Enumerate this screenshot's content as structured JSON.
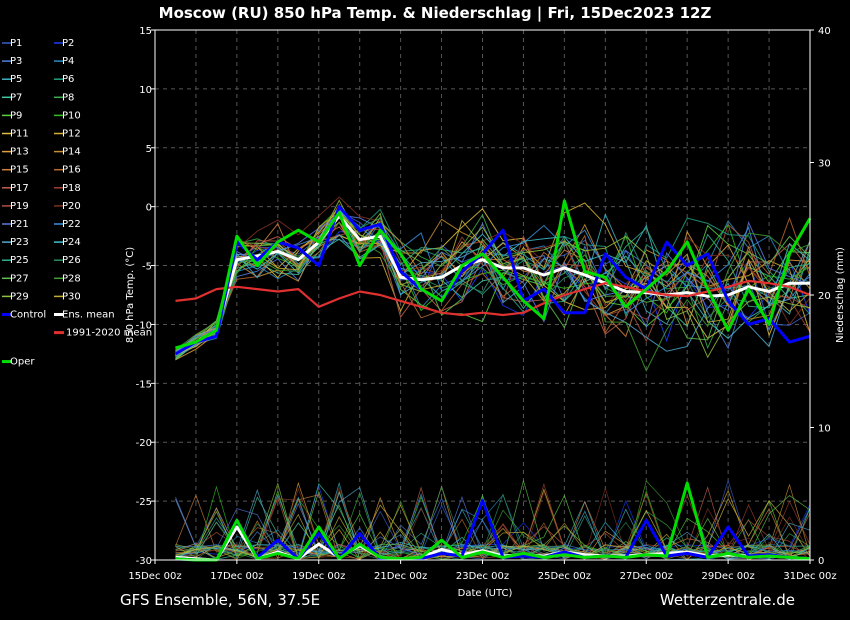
{
  "chart_data": {
    "type": "line",
    "title": "Moscow  (RU)  850 hPa Temp. & Niederschlag | Fri, 15Dec2023 12Z",
    "xlabel": "Date (UTC)",
    "ylabel_left": "850 hPa Temp. (°C)",
    "ylabel_right": "Niederschlag (mm)",
    "footer_left": "GFS Ensemble, 56N, 37.5E",
    "footer_right": "Wetterzentrale.de",
    "ylim_left": [
      -30,
      15
    ],
    "yticks_left": [
      "15",
      "10",
      "5",
      "0",
      "-5",
      "-10",
      "-15",
      "-20",
      "-25",
      "-30"
    ],
    "ylim_right": [
      0,
      40
    ],
    "yticks_right": [
      "40",
      "30",
      "20",
      "10",
      "0"
    ],
    "x_start": "15Dec 00z",
    "x_end": "31Dec 00z",
    "xticks": [
      "15Dec 00z",
      "17Dec 00z",
      "19Dec 00z",
      "21Dec 00z",
      "23Dec 00z",
      "25Dec 00z",
      "27Dec 00z",
      "29Dec 00z",
      "31Dec 00z"
    ],
    "grid": true,
    "legend_position": "left",
    "legend": [
      {
        "label": "P1",
        "color": "#3a5fcd"
      },
      {
        "label": "P2",
        "color": "#1e3cff"
      },
      {
        "label": "P3",
        "color": "#4f7fdc"
      },
      {
        "label": "P4",
        "color": "#2b8cc4"
      },
      {
        "label": "P5",
        "color": "#40b0c0"
      },
      {
        "label": "P6",
        "color": "#20a080"
      },
      {
        "label": "P7",
        "color": "#40c8a0"
      },
      {
        "label": "P8",
        "color": "#3cb050"
      },
      {
        "label": "P9",
        "color": "#5ad040"
      },
      {
        "label": "P10",
        "color": "#30c020"
      },
      {
        "label": "P11",
        "color": "#e0c040"
      },
      {
        "label": "P12",
        "color": "#d8b030"
      },
      {
        "label": "P13",
        "color": "#e0a040"
      },
      {
        "label": "P14",
        "color": "#c89030"
      },
      {
        "label": "P15",
        "color": "#d08040"
      },
      {
        "label": "P16",
        "color": "#b86a30"
      },
      {
        "label": "P17",
        "color": "#c06050"
      },
      {
        "label": "P18",
        "color": "#a04030"
      },
      {
        "label": "P19",
        "color": "#b05040"
      },
      {
        "label": "P20",
        "color": "#803020"
      },
      {
        "label": "P21",
        "color": "#5a7ae0"
      },
      {
        "label": "P22",
        "color": "#3a90e0"
      },
      {
        "label": "P23",
        "color": "#50a8d0"
      },
      {
        "label": "P24",
        "color": "#40c0d0"
      },
      {
        "label": "P25",
        "color": "#30b090"
      },
      {
        "label": "P26",
        "color": "#2a9060"
      },
      {
        "label": "P27",
        "color": "#60c050"
      },
      {
        "label": "P28",
        "color": "#40a030"
      },
      {
        "label": "P29",
        "color": "#90c040"
      },
      {
        "label": "P30",
        "color": "#c0b030"
      },
      {
        "label": "Control",
        "color": "#0000ff"
      },
      {
        "label": "Ens. mean",
        "color": "#ffffff"
      },
      {
        "label": "1991-2020 mean",
        "color": "#e03030"
      },
      {
        "label": "Oper",
        "color": "#00dd00"
      }
    ],
    "series": [
      {
        "name": "Ens. mean",
        "color": "#ffffff",
        "axis": "left",
        "x_days": [
          0.5,
          1,
          1.5,
          2,
          2.5,
          3,
          3.5,
          4,
          4.5,
          5,
          5.5,
          6,
          6.5,
          7,
          7.5,
          8,
          8.5,
          9,
          9.5,
          10,
          10.5,
          11,
          11.5,
          12,
          12.5,
          13,
          13.5,
          14,
          14.5,
          15,
          15.5,
          16
        ],
        "values": [
          -12.5,
          -11.5,
          -10.5,
          -4.5,
          -4.2,
          -3.8,
          -4.5,
          -3,
          -0.8,
          -2.8,
          -2.5,
          -6,
          -6.2,
          -6,
          -5,
          -4.5,
          -5.2,
          -5.2,
          -5.8,
          -5.2,
          -5.8,
          -6.5,
          -7.2,
          -7.3,
          -7.5,
          -7.3,
          -7.6,
          -7.5,
          -6.8,
          -7.2,
          -6.5,
          -6.5
        ]
      },
      {
        "name": "1991-2020 mean",
        "color": "#e03030",
        "axis": "left",
        "x_days": [
          0.5,
          1,
          1.5,
          2,
          2.5,
          3,
          3.5,
          4,
          4.5,
          5,
          5.5,
          6,
          6.5,
          7,
          7.5,
          8,
          8.5,
          9,
          9.5,
          10,
          10.5,
          11,
          11.5,
          12,
          12.5,
          13,
          13.5,
          14,
          14.5,
          15,
          15.5,
          16
        ],
        "values": [
          -8,
          -7.8,
          -7,
          -6.8,
          -7,
          -7.2,
          -7,
          -8.5,
          -7.8,
          -7.2,
          -7.5,
          -8,
          -8.5,
          -9,
          -9.2,
          -9,
          -9.2,
          -9,
          -8.2,
          -7.5,
          -7,
          -6.5,
          -6.8,
          -7.2,
          -7.5,
          -7.6,
          -7.2,
          -6.8,
          -6.3,
          -6.5,
          -6.8,
          -7.5
        ]
      },
      {
        "name": "Control",
        "color": "#0000ff",
        "axis": "left",
        "x_days": [
          0.5,
          1,
          1.5,
          2,
          2.5,
          3,
          3.5,
          4,
          4.5,
          5,
          5.5,
          6,
          6.5,
          7,
          7.5,
          8,
          8.5,
          9,
          9.5,
          10,
          10.5,
          11,
          11.5,
          12,
          12.5,
          13,
          13.5,
          14,
          14.5,
          15,
          15.5,
          16
        ],
        "values": [
          -12.5,
          -11.5,
          -11,
          -3,
          -4.5,
          -3,
          -3.5,
          -5,
          0,
          -2,
          -1.5,
          -5.5,
          -7,
          -8,
          -5.5,
          -4,
          -2,
          -8,
          -7,
          -9,
          -9,
          -4,
          -6,
          -7,
          -3,
          -5,
          -4,
          -8,
          -10,
          -9.5,
          -11.5,
          -11
        ]
      },
      {
        "name": "Oper",
        "color": "#00dd00",
        "axis": "left",
        "x_days": [
          0.5,
          1,
          1.5,
          2,
          2.5,
          3,
          3.5,
          4,
          4.5,
          5,
          5.5,
          6,
          6.5,
          7,
          7.5,
          8,
          8.5,
          9,
          9.5,
          10,
          10.5,
          11,
          11.5,
          12,
          12.5,
          13,
          13.5,
          14,
          14.5,
          15,
          15.5,
          16
        ],
        "values": [
          -12,
          -11.5,
          -10.5,
          -2.5,
          -5,
          -3,
          -2,
          -3,
          -0.5,
          -5,
          -2,
          -4,
          -7,
          -8,
          -5,
          -4,
          -6,
          -8,
          -9.5,
          0.5,
          -5.5,
          -6,
          -8.5,
          -7,
          -5.5,
          -3,
          -7,
          -10.5,
          -7,
          -10,
          -4,
          -1
        ]
      },
      {
        "name": "Precipitation Ens. mean",
        "color": "#ffffff",
        "axis": "right",
        "x_days": [
          0.5,
          1,
          1.5,
          2,
          2.5,
          3,
          3.5,
          4,
          4.5,
          5,
          5.5,
          6,
          6.5,
          7,
          7.5,
          8,
          8.5,
          9,
          9.5,
          10,
          10.5,
          11,
          11.5,
          12,
          12.5,
          13,
          13.5,
          14,
          14.5,
          15,
          15.5,
          16
        ],
        "values": [
          0.2,
          0.1,
          0,
          2.5,
          0.1,
          0.6,
          0.1,
          1.2,
          0.2,
          1.1,
          0.2,
          0.1,
          0.2,
          0.8,
          0.4,
          0.7,
          0.3,
          0.4,
          0.3,
          0.6,
          0.4,
          0.3,
          0.3,
          0.4,
          0.5,
          0.6,
          0.3,
          0.4,
          0.3,
          0.3,
          0.2,
          0.1
        ]
      },
      {
        "name": "Precipitation Control",
        "color": "#0000ff",
        "axis": "right",
        "x_days": [
          0.5,
          1,
          1.5,
          2,
          2.5,
          3,
          3.5,
          4,
          4.5,
          5,
          5.5,
          6,
          6.5,
          7,
          7.5,
          8,
          8.5,
          9,
          9.5,
          10,
          10.5,
          11,
          11.5,
          12,
          12.5,
          13,
          13.5,
          14,
          14.5,
          15,
          15.5,
          16
        ],
        "values": [
          0.1,
          0,
          0,
          3,
          0.2,
          1.5,
          0.1,
          2,
          0.1,
          2,
          0.1,
          0.1,
          0.1,
          0.5,
          0.3,
          4.5,
          0.2,
          0.3,
          0.2,
          0.6,
          0.2,
          0.3,
          0.2,
          3,
          0.3,
          0.5,
          0.2,
          2.5,
          0.3,
          0.4,
          0.2,
          0.1
        ]
      },
      {
        "name": "Precipitation Oper",
        "color": "#00dd00",
        "axis": "right",
        "x_days": [
          0.5,
          1,
          1.5,
          2,
          2.5,
          3,
          3.5,
          4,
          4.5,
          5,
          5.5,
          6,
          6.5,
          7,
          7.5,
          8,
          8.5,
          9,
          9.5,
          10,
          10.5,
          11,
          11.5,
          12,
          12.5,
          13,
          13.5,
          14,
          14.5,
          15,
          15.5,
          16
        ],
        "values": [
          0.1,
          0,
          0,
          3,
          0.1,
          0.5,
          0.1,
          2.5,
          0.1,
          1.2,
          0.2,
          0.1,
          0.2,
          1.5,
          0.2,
          0.6,
          0.2,
          0.5,
          0.2,
          0.4,
          0.2,
          0.3,
          0.2,
          0.4,
          0.3,
          5.8,
          0.2,
          0.5,
          0.2,
          0.3,
          0.2,
          0.1
        ]
      }
    ]
  }
}
